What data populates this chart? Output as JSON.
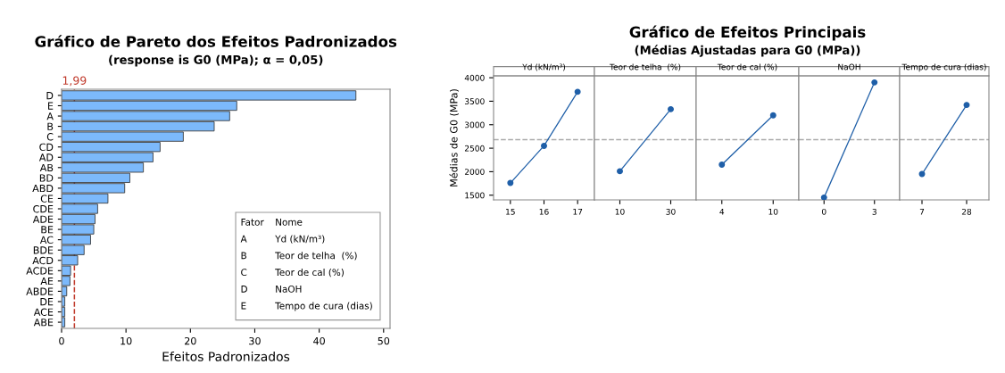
{
  "chart_data": [
    {
      "type": "bar",
      "orientation": "horizontal",
      "title": "Gráfico de Pareto dos Efeitos Padronizados",
      "subtitle": "(response is G0 (MPa); α = 0,05)",
      "xlabel": "Efeitos Padronizados",
      "categories": [
        "D",
        "E",
        "A",
        "B",
        "C",
        "CD",
        "AD",
        "AB",
        "BD",
        "ABD",
        "CE",
        "CDE",
        "ADE",
        "BE",
        "AC",
        "BDE",
        "ACD",
        "ACDE",
        "AE",
        "ABDE",
        "DE",
        "ACE",
        "ABE"
      ],
      "values": [
        45.7,
        27.2,
        26.1,
        23.7,
        18.9,
        15.3,
        14.2,
        12.7,
        10.6,
        9.8,
        7.2,
        5.6,
        5.2,
        5.0,
        4.5,
        3.5,
        2.5,
        1.4,
        1.3,
        0.8,
        0.5,
        0.5,
        0.5
      ],
      "color": "#7cb9fb",
      "xlim": [
        0,
        51
      ],
      "xticks": [
        0,
        10,
        20,
        30,
        40,
        50
      ],
      "grid": false,
      "ref_lines": [
        {
          "axis": "x",
          "value": 1.99,
          "label": "1,99",
          "color": "#c0392b",
          "line_style": "dashed"
        }
      ],
      "annotations": [
        "Fator",
        "Nome",
        "A",
        "Yd (kN/m³)",
        "B",
        "Teor de telha  (%)",
        "C",
        "Teor de cal (%)",
        "D",
        "NaOH",
        "E",
        "Tempo de cura (dias)"
      ]
    },
    {
      "type": "line",
      "ylabel": "Médias de G0 (MPa)",
      "annotations": [
        "Yd (kN/m³)"
      ],
      "categories": [
        "15",
        "16",
        "17"
      ],
      "series": [
        {
          "color": "#1f5fa8",
          "values": [
            1760,
            2550,
            3700
          ]
        }
      ],
      "ylim": [
        1400,
        4040
      ],
      "yticks": [
        1500,
        2000,
        2500,
        3000,
        3500,
        4000
      ],
      "marker": "circle",
      "grid": false,
      "ref_lines": [
        {
          "axis": "y",
          "value": 2682,
          "color": "#aaaaaa",
          "line_style": "dashed"
        }
      ]
    },
    {
      "type": "line",
      "annotations": [
        "Teor de telha  (%)"
      ],
      "categories": [
        "10",
        "30"
      ],
      "series": [
        {
          "color": "#1f5fa8",
          "values": [
            2010,
            3330
          ]
        }
      ],
      "ylim": [
        1400,
        4040
      ],
      "tick_labels": "x",
      "marker": "circle",
      "grid": false,
      "ref_lines": [
        {
          "axis": "y",
          "value": 2682,
          "color": "#aaaaaa",
          "line_style": "dashed"
        }
      ]
    },
    {
      "type": "line",
      "title": "Gráfico de Efeitos Principais",
      "subtitle": "(Médias Ajustadas para G0 (MPa))",
      "annotations": [
        "Teor de cal (%)"
      ],
      "categories": [
        "4",
        "10"
      ],
      "series": [
        {
          "color": "#1f5fa8",
          "values": [
            2150,
            3200
          ]
        }
      ],
      "ylim": [
        1400,
        4040
      ],
      "tick_labels": "x",
      "marker": "circle",
      "grid": false,
      "ref_lines": [
        {
          "axis": "y",
          "value": 2682,
          "color": "#aaaaaa",
          "line_style": "dashed"
        }
      ]
    },
    {
      "type": "line",
      "annotations": [
        "NaOH"
      ],
      "categories": [
        "0",
        "3"
      ],
      "series": [
        {
          "color": "#1f5fa8",
          "values": [
            1450,
            3900
          ]
        }
      ],
      "ylim": [
        1400,
        4040
      ],
      "tick_labels": "x",
      "marker": "circle",
      "grid": false,
      "ref_lines": [
        {
          "axis": "y",
          "value": 2682,
          "color": "#aaaaaa",
          "line_style": "dashed"
        }
      ]
    },
    {
      "type": "line",
      "annotations": [
        "Tempo de cura (dias)"
      ],
      "categories": [
        "7",
        "28"
      ],
      "series": [
        {
          "color": "#1f5fa8",
          "values": [
            1950,
            3420
          ]
        }
      ],
      "ylim": [
        1400,
        4040
      ],
      "tick_labels": "x",
      "marker": "circle",
      "grid": false,
      "ref_lines": [
        {
          "axis": "y",
          "value": 2682,
          "color": "#aaaaaa",
          "line_style": "dashed"
        }
      ]
    }
  ]
}
